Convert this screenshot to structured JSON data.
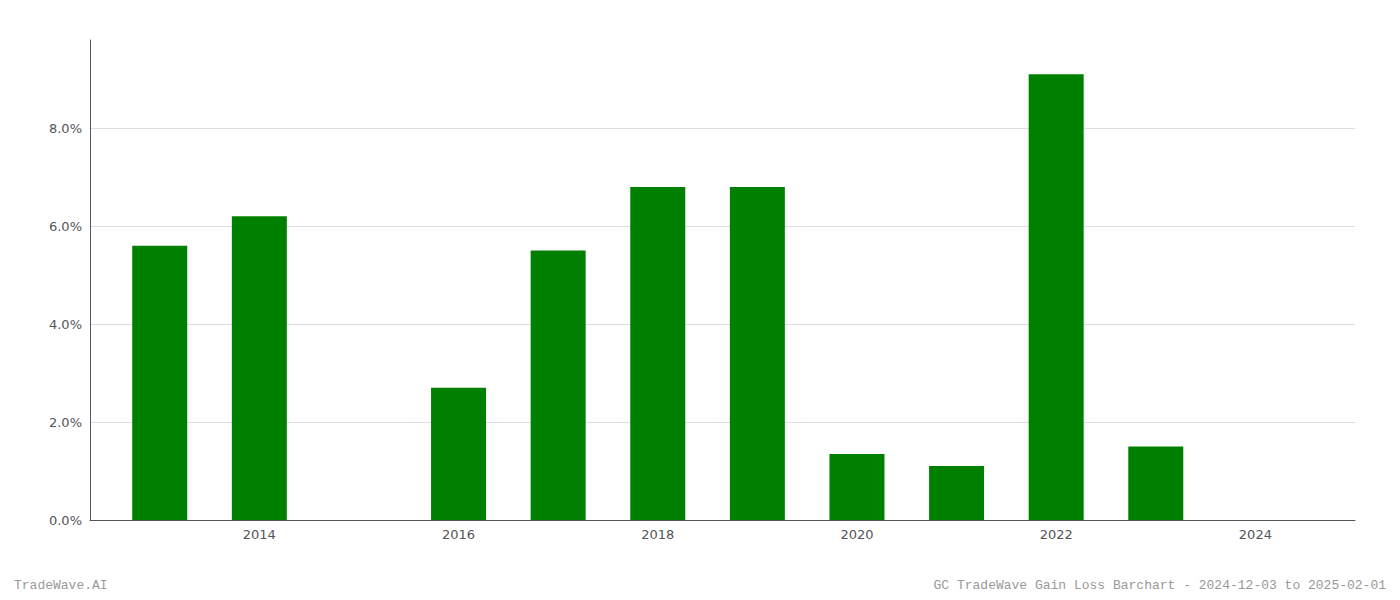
{
  "chart_data": {
    "type": "bar",
    "x": [
      2013,
      2014,
      2016,
      2017,
      2018,
      2019,
      2020,
      2021,
      2022,
      2023
    ],
    "values": [
      0.056,
      0.062,
      0.027,
      0.055,
      0.068,
      0.068,
      0.0135,
      0.011,
      0.091,
      0.015
    ],
    "color": "#008000",
    "xlim": [
      2012.3,
      2025.0
    ],
    "xticks": [
      2014,
      2016,
      2018,
      2020,
      2022,
      2024
    ],
    "ylim": [
      0,
      0.098
    ],
    "yticks": [
      {
        "value": 0.0,
        "label": "0.0%"
      },
      {
        "value": 0.02,
        "label": "2.0%"
      },
      {
        "value": 0.04,
        "label": "4.0%"
      },
      {
        "value": 0.06,
        "label": "6.0%"
      },
      {
        "value": 0.08,
        "label": "8.0%"
      }
    ],
    "grid": true,
    "annotations": [
      "TradeWave.AI",
      "GC TradeWave Gain Loss Barchart - 2024-12-03 to 2025-02-01"
    ]
  }
}
